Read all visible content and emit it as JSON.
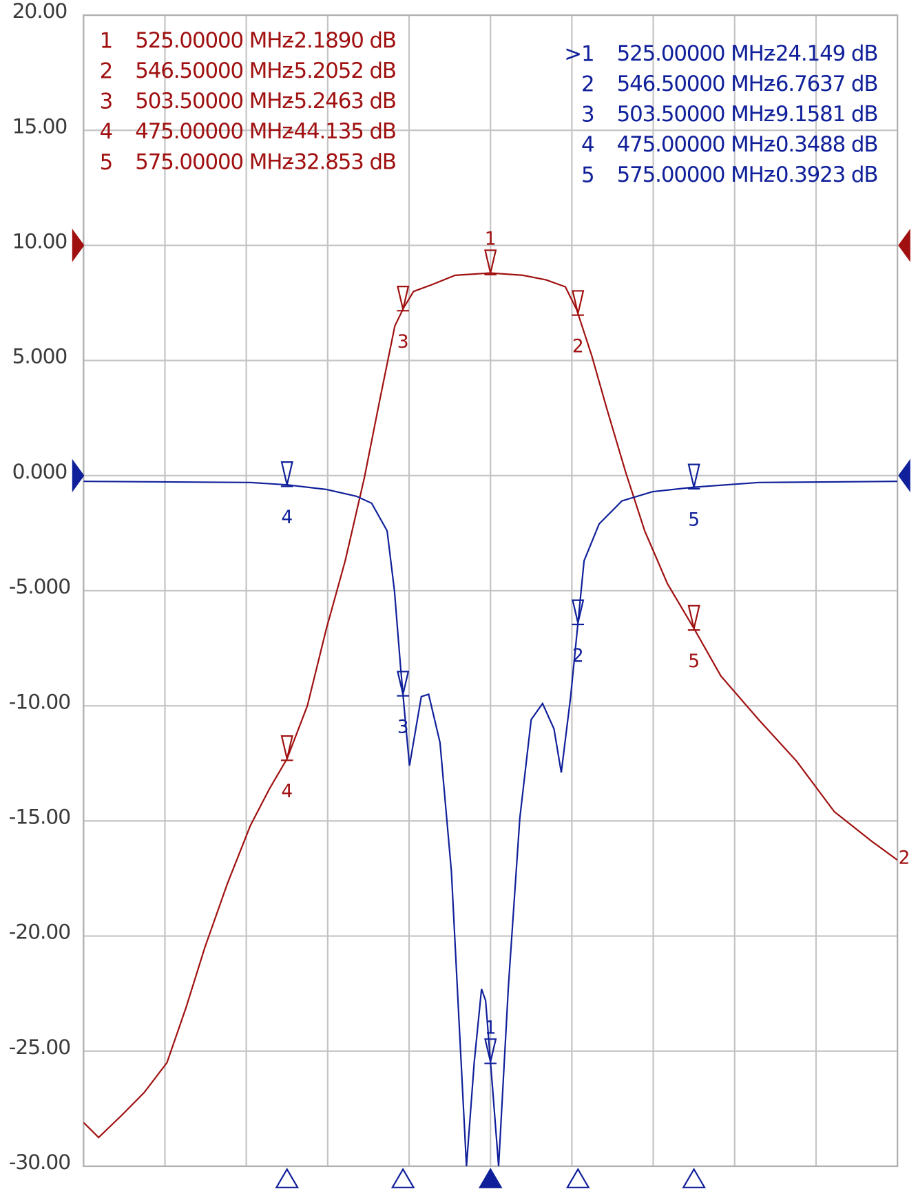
{
  "chart_data": {
    "type": "line",
    "xlim": [
      425,
      625
    ],
    "xticks": [
      425,
      445,
      465,
      485,
      505,
      525,
      545,
      565,
      585,
      605,
      625
    ],
    "ylim": [
      -30,
      20
    ],
    "yticks": [
      {
        "value": 20,
        "label": "20.00"
      },
      {
        "value": 15,
        "label": "15.00"
      },
      {
        "value": 10,
        "label": "10.00"
      },
      {
        "value": 5,
        "label": "5.000"
      },
      {
        "value": 0,
        "label": "0.000"
      },
      {
        "value": -5,
        "label": "-5.000"
      },
      {
        "value": -10,
        "label": "-10.00"
      },
      {
        "value": -15,
        "label": "-15.00"
      },
      {
        "value": -20,
        "label": "-20.00"
      },
      {
        "value": -25,
        "label": "-25.00"
      },
      {
        "value": -30,
        "label": "-30.00"
      }
    ],
    "grid": true,
    "series": [
      {
        "color": "#a01010",
        "reference": 10,
        "trace_label": "2",
        "x": [
          425,
          428.7,
          434.3,
          439.9,
          445.5,
          450.2,
          454.8,
          460.4,
          466,
          470.7,
          475,
          480,
          484.6,
          489.3,
          494,
          497.7,
          501.5,
          503.7,
          506.1,
          510.7,
          516.3,
          525,
          533,
          538.7,
          543.4,
          546.2,
          549.9,
          553.6,
          558.3,
          562.9,
          568.5,
          575.2,
          581.6,
          590.9,
          600.2,
          609.5,
          618.8,
          625
        ],
        "values": [
          -28.1,
          -28.75,
          -27.8,
          -26.8,
          -25.5,
          -23.1,
          -20.5,
          -17.7,
          -15.2,
          -13.6,
          -12.3,
          -10.0,
          -6.7,
          -3.7,
          -0.1,
          3.2,
          6.5,
          7.3,
          8.0,
          8.3,
          8.7,
          8.8,
          8.7,
          8.5,
          8.2,
          7.2,
          5.2,
          2.9,
          0.1,
          -2.4,
          -4.7,
          -6.7,
          -8.7,
          -10.6,
          -12.4,
          -14.6,
          -15.9,
          -16.7
        ],
        "markers": [
          {
            "id": "1",
            "freq": 525,
            "freq_label": "525.00000 MHz",
            "reading": "-2.1890 dB"
          },
          {
            "id": "2",
            "freq": 546.5,
            "freq_label": "546.50000 MHz",
            "reading": "-5.2052 dB"
          },
          {
            "id": "3",
            "freq": 503.5,
            "freq_label": "503.50000 MHz",
            "reading": "-5.2463 dB"
          },
          {
            "id": "4",
            "freq": 475,
            "freq_label": "475.00000 MHz",
            "reading": "-44.135 dB"
          },
          {
            "id": "5",
            "freq": 575,
            "freq_label": "575.00000 MHz",
            "reading": "-32.853 dB"
          }
        ]
      },
      {
        "color": "#10209a",
        "reference": 0,
        "x": [
          425,
          466,
          475,
          484.6,
          492.1,
          495.8,
          499.6,
          501.4,
          502.9,
          503.9,
          505.1,
          508,
          509.8,
          512.6,
          515.4,
          517.3,
          519.1,
          521,
          522.8,
          523.8,
          525.6,
          527,
          529.4,
          532.2,
          535,
          537.8,
          540.6,
          542.4,
          544.7,
          546.5,
          548,
          551.7,
          557.3,
          564.8,
          575.2,
          590.9,
          625
        ],
        "values": [
          -0.25,
          -0.3,
          -0.4,
          -0.6,
          -0.9,
          -1.2,
          -2.4,
          -5.0,
          -8.3,
          -10.3,
          -12.6,
          -9.6,
          -9.5,
          -11.6,
          -17.2,
          -23.8,
          -30,
          -25.5,
          -22.3,
          -22.8,
          -26.8,
          -30,
          -22.2,
          -14.9,
          -10.6,
          -9.9,
          -11.0,
          -12.9,
          -9.6,
          -6.4,
          -3.7,
          -2.1,
          -1.1,
          -0.7,
          -0.5,
          -0.3,
          -0.25
        ],
        "markers": [
          {
            "prefix": ">",
            "id": "1",
            "freq": 525,
            "freq_label": "525.00000 MHz",
            "reading": "-24.149 dB"
          },
          {
            "id": "2",
            "freq": 546.5,
            "freq_label": "546.50000 MHz",
            "reading": "-6.7637 dB"
          },
          {
            "id": "3",
            "freq": 503.5,
            "freq_label": "503.50000 MHz",
            "reading": "-9.1581 dB"
          },
          {
            "id": "4",
            "freq": 475,
            "freq_label": "475.00000 MHz",
            "reading": "-0.3488 dB"
          },
          {
            "id": "5",
            "freq": 575,
            "freq_label": "575.00000 MHz",
            "reading": "-0.3923 dB"
          }
        ]
      }
    ]
  }
}
